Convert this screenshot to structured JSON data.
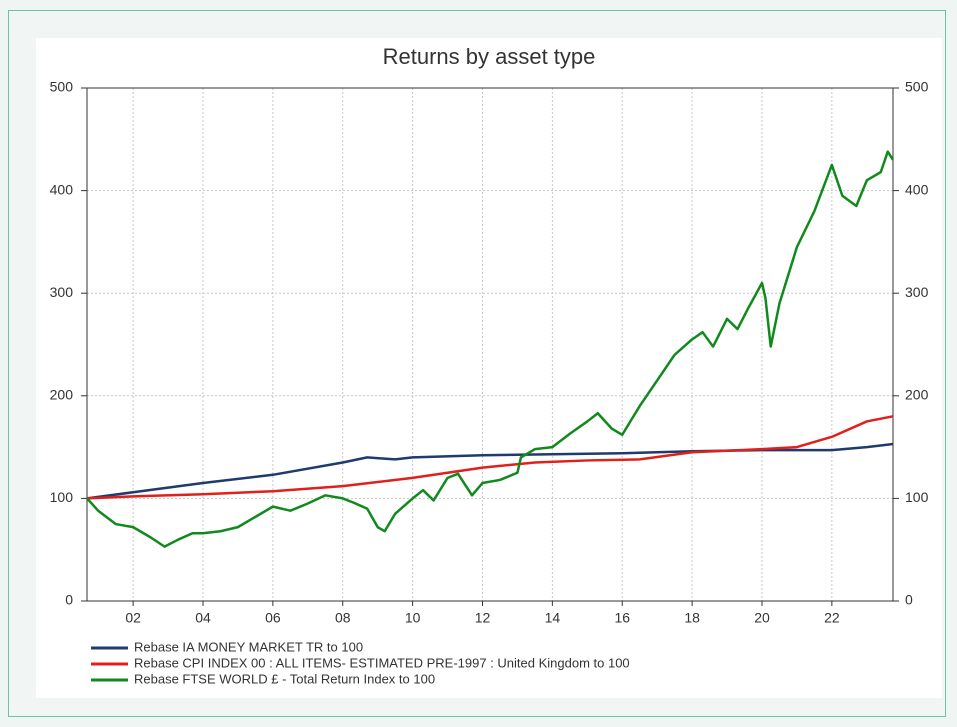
{
  "chart_data": {
    "type": "line",
    "title": "Returns by asset type",
    "xlim": [
      2000.68,
      2023.75
    ],
    "xticks": [
      {
        "value": 2002,
        "label": "02"
      },
      {
        "value": 2004,
        "label": "04"
      },
      {
        "value": 2006,
        "label": "06"
      },
      {
        "value": 2008,
        "label": "08"
      },
      {
        "value": 2010,
        "label": "10"
      },
      {
        "value": 2012,
        "label": "12"
      },
      {
        "value": 2014,
        "label": "14"
      },
      {
        "value": 2016,
        "label": "16"
      },
      {
        "value": 2018,
        "label": "18"
      },
      {
        "value": 2020,
        "label": "20"
      },
      {
        "value": 2022,
        "label": "22"
      }
    ],
    "ylim": [
      0,
      500
    ],
    "yticks": [
      0,
      100,
      200,
      300,
      400,
      500
    ],
    "y2lim": [
      0,
      500
    ],
    "y2ticks": [
      0,
      100,
      200,
      300,
      400,
      500
    ],
    "grid": true,
    "legend": "bottom",
    "series": [
      {
        "name": "Rebase IA MONEY MARKET TR to 100",
        "color": "#1f3a6e",
        "x": [
          2000.68,
          2002,
          2004,
          2006,
          2008,
          2008.7,
          2009.5,
          2010,
          2012,
          2014,
          2016,
          2018,
          2020,
          2022,
          2023,
          2023.75
        ],
        "values": [
          100,
          106,
          115,
          123,
          135,
          140,
          138,
          140,
          142,
          143,
          144,
          146,
          147,
          147,
          150,
          153
        ]
      },
      {
        "name": "Rebase CPI INDEX 00 : ALL ITEMS- ESTIMATED PRE-1997 : United Kingdom to 100",
        "color": "#e0201b",
        "x": [
          2000.68,
          2002,
          2004,
          2006,
          2008,
          2010,
          2012,
          2013.5,
          2015,
          2016.5,
          2018,
          2020,
          2021,
          2022,
          2023,
          2023.75
        ],
        "values": [
          100,
          102,
          104,
          107,
          112,
          120,
          130,
          135,
          137,
          138,
          145,
          148,
          150,
          160,
          175,
          180
        ]
      },
      {
        "name": "Rebase FTSE WORLD £ - Total Return Index to 100",
        "color": "#118a1d",
        "x": [
          2000.68,
          2001,
          2001.5,
          2002,
          2002.5,
          2002.9,
          2003.3,
          2003.7,
          2004,
          2004.5,
          2005,
          2005.5,
          2006,
          2006.5,
          2007,
          2007.5,
          2008,
          2008.3,
          2008.7,
          2009,
          2009.2,
          2009.5,
          2010,
          2010.3,
          2010.6,
          2011,
          2011.3,
          2011.7,
          2012,
          2012.5,
          2013,
          2013.1,
          2013.5,
          2014,
          2014.5,
          2015,
          2015.3,
          2015.7,
          2016,
          2016.5,
          2017,
          2017.5,
          2018,
          2018.3,
          2018.6,
          2019,
          2019.3,
          2019.6,
          2020,
          2020.1,
          2020.25,
          2020.5,
          2021,
          2021.5,
          2022,
          2022.3,
          2022.7,
          2023,
          2023.4,
          2023.6,
          2023.75
        ],
        "values": [
          100,
          88,
          75,
          72,
          62,
          53,
          60,
          66,
          66,
          68,
          72,
          82,
          92,
          88,
          95,
          103,
          100,
          96,
          90,
          72,
          68,
          85,
          100,
          108,
          98,
          120,
          124,
          103,
          115,
          118,
          125,
          140,
          148,
          150,
          163,
          175,
          183,
          168,
          162,
          190,
          215,
          240,
          255,
          262,
          248,
          275,
          265,
          285,
          310,
          295,
          248,
          290,
          345,
          380,
          425,
          395,
          385,
          410,
          418,
          438,
          430
        ]
      }
    ]
  }
}
